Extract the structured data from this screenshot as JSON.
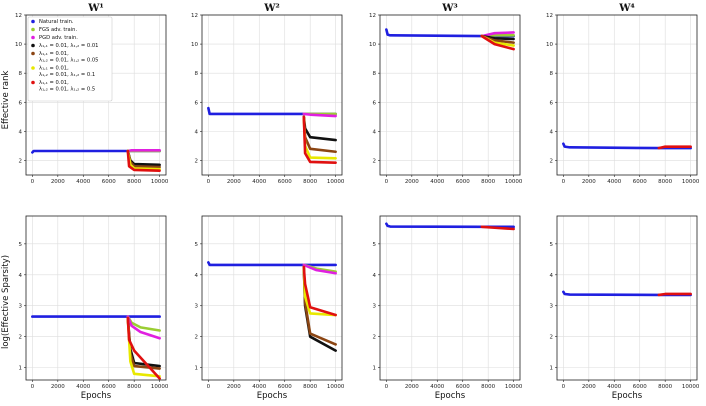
{
  "figure": {
    "ylabel_top": "Effective rank",
    "ylabel_bottom": "log(Effective Sparsity)",
    "xlabel": "Epochs"
  },
  "legend": {
    "entries": [
      {
        "label": "Natural train.",
        "color": "#1f1fe0"
      },
      {
        "label": "FGS adv. train.",
        "color": "#9acd32"
      },
      {
        "label": "PGD adv. train.",
        "color": "#e020e0"
      },
      {
        "label": "λ₁,₁ = 0.01, λ₁,₂ = 0.01",
        "color": "#111111"
      },
      {
        "label": "λ₁,₁ = 0.01,",
        "label2": "λ₁,₂ = 0.01, λ₁,₂ = 0.05",
        "color": "#8b4513"
      },
      {
        "label": "λ₁,₁ = 0.01,",
        "label2": "λ₁,₂ = 0.01, λ₁,₂ = 0.1",
        "color": "#e8e800"
      },
      {
        "label": "λ₁,₁ = 0.01,",
        "label2": "λ₁,₂ = 0.01, λ₁,₂ = 0.5",
        "color": "#e01010"
      }
    ]
  },
  "chart_data": [
    {
      "type": "line",
      "title": "W¹",
      "row": "top",
      "ylim": [
        1,
        12
      ],
      "yticks": [
        2,
        4,
        6,
        8,
        10,
        12
      ],
      "xlim": [
        -500,
        10500
      ],
      "xticks": [
        0,
        2000,
        4000,
        6000,
        8000,
        10000
      ],
      "series": [
        {
          "color": "#1f1fe0",
          "x": [
            0,
            100,
            7500,
            10000
          ],
          "y": [
            2.55,
            2.65,
            2.65,
            2.65
          ]
        },
        {
          "color": "#9acd32",
          "x": [
            7500,
            7800,
            10000
          ],
          "y": [
            2.65,
            2.65,
            2.65
          ]
        },
        {
          "color": "#e020e0",
          "x": [
            7500,
            7800,
            10000
          ],
          "y": [
            2.65,
            2.7,
            2.7
          ]
        },
        {
          "color": "#111111",
          "x": [
            7500,
            7700,
            8000,
            10000
          ],
          "y": [
            2.65,
            2.0,
            1.75,
            1.7
          ]
        },
        {
          "color": "#8b4513",
          "x": [
            7500,
            7700,
            8000,
            10000
          ],
          "y": [
            2.65,
            1.9,
            1.6,
            1.55
          ]
        },
        {
          "color": "#e8e800",
          "x": [
            7500,
            7700,
            8000,
            10000
          ],
          "y": [
            2.65,
            1.7,
            1.45,
            1.4
          ]
        },
        {
          "color": "#e01010",
          "x": [
            7500,
            7600,
            8000,
            10000
          ],
          "y": [
            2.65,
            1.6,
            1.35,
            1.3
          ]
        }
      ]
    },
    {
      "type": "line",
      "title": "W²",
      "row": "top",
      "ylim": [
        1,
        12
      ],
      "yticks": [
        2,
        4,
        6,
        8,
        10,
        12
      ],
      "xlim": [
        -500,
        10500
      ],
      "xticks": [
        0,
        2000,
        4000,
        6000,
        8000,
        10000
      ],
      "series": [
        {
          "color": "#1f1fe0",
          "x": [
            0,
            100,
            200,
            7500,
            10000
          ],
          "y": [
            5.6,
            5.2,
            5.2,
            5.2,
            5.2
          ]
        },
        {
          "color": "#9acd32",
          "x": [
            7500,
            8000,
            10000
          ],
          "y": [
            5.2,
            5.2,
            5.2
          ]
        },
        {
          "color": "#e020e0",
          "x": [
            7500,
            8000,
            10000
          ],
          "y": [
            5.2,
            5.15,
            5.05
          ]
        },
        {
          "color": "#111111",
          "x": [
            7500,
            7600,
            8000,
            10000
          ],
          "y": [
            5.0,
            4.2,
            3.6,
            3.4
          ]
        },
        {
          "color": "#8b4513",
          "x": [
            7500,
            7600,
            8000,
            10000
          ],
          "y": [
            5.0,
            3.6,
            2.8,
            2.6
          ]
        },
        {
          "color": "#e8e800",
          "x": [
            7500,
            7600,
            8000,
            10000
          ],
          "y": [
            5.0,
            3.0,
            2.2,
            2.15
          ]
        },
        {
          "color": "#e01010",
          "x": [
            7500,
            7600,
            8000,
            10000
          ],
          "y": [
            5.0,
            2.5,
            1.9,
            1.85
          ]
        }
      ]
    },
    {
      "type": "line",
      "title": "W³",
      "row": "top",
      "ylim": [
        1,
        12
      ],
      "yticks": [
        2,
        4,
        6,
        8,
        10,
        12
      ],
      "xlim": [
        -500,
        10500
      ],
      "xticks": [
        0,
        2000,
        4000,
        6000,
        8000,
        10000
      ],
      "series": [
        {
          "color": "#1f1fe0",
          "x": [
            0,
            100,
            300,
            7500,
            10000
          ],
          "y": [
            11.0,
            10.65,
            10.6,
            10.55,
            10.55
          ]
        },
        {
          "color": "#9acd32",
          "x": [
            7500,
            8500,
            10000
          ],
          "y": [
            10.55,
            10.6,
            10.6
          ]
        },
        {
          "color": "#e020e0",
          "x": [
            7500,
            8500,
            10000
          ],
          "y": [
            10.55,
            10.75,
            10.8
          ]
        },
        {
          "color": "#111111",
          "x": [
            7500,
            8500,
            10000
          ],
          "y": [
            10.55,
            10.4,
            10.35
          ]
        },
        {
          "color": "#8b4513",
          "x": [
            7500,
            8500,
            10000
          ],
          "y": [
            10.55,
            10.25,
            10.1
          ]
        },
        {
          "color": "#e8e800",
          "x": [
            7500,
            8500,
            10000
          ],
          "y": [
            10.55,
            10.1,
            9.9
          ]
        },
        {
          "color": "#e01010",
          "x": [
            7500,
            8500,
            10000
          ],
          "y": [
            10.55,
            10.0,
            9.65
          ]
        }
      ]
    },
    {
      "type": "line",
      "title": "W⁴",
      "row": "top",
      "ylim": [
        1,
        12
      ],
      "yticks": [
        2,
        4,
        6,
        8,
        10,
        12
      ],
      "xlim": [
        -500,
        10500
      ],
      "xticks": [
        0,
        2000,
        4000,
        6000,
        8000,
        10000
      ],
      "series": [
        {
          "color": "#1f1fe0",
          "x": [
            0,
            100,
            500,
            7500,
            10000
          ],
          "y": [
            3.15,
            2.95,
            2.9,
            2.85,
            2.85
          ]
        },
        {
          "color": "#e01010",
          "x": [
            7500,
            8000,
            10000
          ],
          "y": [
            2.85,
            2.95,
            2.95
          ]
        }
      ]
    },
    {
      "type": "line",
      "title": "",
      "row": "bottom",
      "ylim": [
        0.6,
        5.9
      ],
      "yticks": [
        1,
        2,
        3,
        4,
        5
      ],
      "xlim": [
        -500,
        10500
      ],
      "xticks": [
        0,
        2000,
        4000,
        6000,
        8000,
        10000
      ],
      "xlabel": "Epochs",
      "series": [
        {
          "color": "#1f1fe0",
          "x": [
            0,
            7500,
            10000
          ],
          "y": [
            2.65,
            2.65,
            2.65
          ]
        },
        {
          "color": "#9acd32",
          "x": [
            7500,
            7800,
            8500,
            10000
          ],
          "y": [
            2.65,
            2.45,
            2.3,
            2.2
          ]
        },
        {
          "color": "#e020e0",
          "x": [
            7500,
            7800,
            8500,
            10000
          ],
          "y": [
            2.65,
            2.35,
            2.15,
            1.95
          ]
        },
        {
          "color": "#111111",
          "x": [
            7500,
            7700,
            8000,
            10000
          ],
          "y": [
            2.6,
            1.6,
            1.15,
            1.05
          ]
        },
        {
          "color": "#8b4513",
          "x": [
            7500,
            7700,
            8000,
            10000
          ],
          "y": [
            2.6,
            1.45,
            1.05,
            0.97
          ]
        },
        {
          "color": "#e8e800",
          "x": [
            7500,
            7700,
            8000,
            10000
          ],
          "y": [
            2.6,
            1.2,
            0.8,
            0.72
          ]
        },
        {
          "color": "#e01010",
          "x": [
            7500,
            7600,
            8000,
            10000
          ],
          "y": [
            2.6,
            1.9,
            1.55,
            0.65
          ]
        }
      ]
    },
    {
      "type": "line",
      "title": "",
      "row": "bottom",
      "ylim": [
        0.6,
        5.9
      ],
      "yticks": [
        1,
        2,
        3,
        4,
        5
      ],
      "xlim": [
        -500,
        10500
      ],
      "xticks": [
        0,
        2000,
        4000,
        6000,
        8000,
        10000
      ],
      "xlabel": "Epochs",
      "series": [
        {
          "color": "#1f1fe0",
          "x": [
            0,
            100,
            200,
            7500,
            10000
          ],
          "y": [
            4.4,
            4.32,
            4.32,
            4.32,
            4.32
          ]
        },
        {
          "color": "#9acd32",
          "x": [
            7500,
            8500,
            10000
          ],
          "y": [
            4.32,
            4.2,
            4.1
          ]
        },
        {
          "color": "#e020e0",
          "x": [
            7500,
            8500,
            10000
          ],
          "y": [
            4.32,
            4.15,
            4.05
          ]
        },
        {
          "color": "#111111",
          "x": [
            7500,
            7600,
            8000,
            10000
          ],
          "y": [
            4.25,
            3.0,
            2.0,
            1.55
          ]
        },
        {
          "color": "#8b4513",
          "x": [
            7500,
            7600,
            8000,
            10000
          ],
          "y": [
            4.25,
            3.1,
            2.1,
            1.75
          ]
        },
        {
          "color": "#e8e800",
          "x": [
            7500,
            7600,
            8000,
            10000
          ],
          "y": [
            4.25,
            3.3,
            2.75,
            2.7
          ]
        },
        {
          "color": "#e01010",
          "x": [
            7500,
            7600,
            8000,
            10000
          ],
          "y": [
            4.25,
            3.7,
            2.95,
            2.7
          ]
        }
      ]
    },
    {
      "type": "line",
      "title": "",
      "row": "bottom",
      "ylim": [
        0.6,
        5.9
      ],
      "yticks": [
        1,
        2,
        3,
        4,
        5
      ],
      "xlim": [
        -500,
        10500
      ],
      "xticks": [
        0,
        2000,
        4000,
        6000,
        8000,
        10000
      ],
      "xlabel": "Epochs",
      "series": [
        {
          "color": "#1f1fe0",
          "x": [
            0,
            100,
            300,
            7500,
            10000
          ],
          "y": [
            5.65,
            5.58,
            5.56,
            5.55,
            5.55
          ]
        },
        {
          "color": "#e01010",
          "x": [
            7500,
            8500,
            10000
          ],
          "y": [
            5.55,
            5.52,
            5.48
          ]
        }
      ]
    },
    {
      "type": "line",
      "title": "",
      "row": "bottom",
      "ylim": [
        0.6,
        5.9
      ],
      "yticks": [
        1,
        2,
        3,
        4,
        5
      ],
      "xlim": [
        -500,
        10500
      ],
      "xticks": [
        0,
        2000,
        4000,
        6000,
        8000,
        10000
      ],
      "xlabel": "Epochs",
      "series": [
        {
          "color": "#1f1fe0",
          "x": [
            0,
            100,
            500,
            7500,
            10000
          ],
          "y": [
            3.45,
            3.38,
            3.36,
            3.35,
            3.35
          ]
        },
        {
          "color": "#e01010",
          "x": [
            7500,
            8000,
            10000
          ],
          "y": [
            3.35,
            3.38,
            3.38
          ]
        }
      ]
    }
  ]
}
